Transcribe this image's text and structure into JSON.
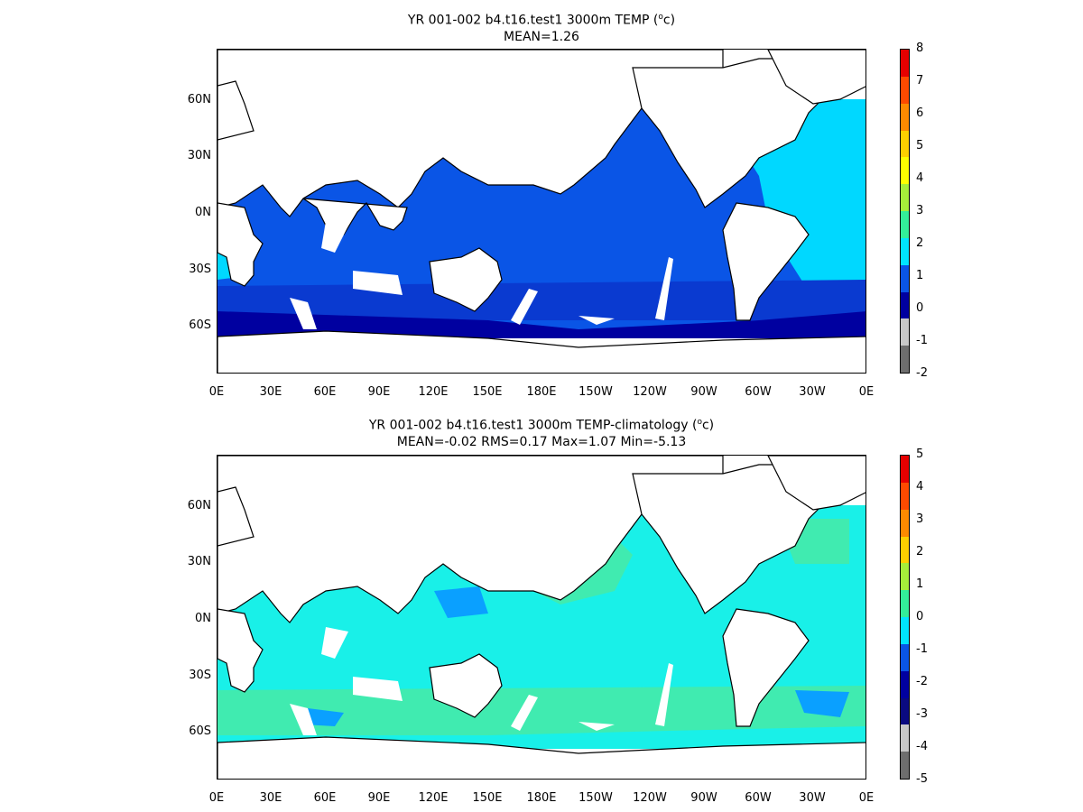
{
  "panels": [
    {
      "title_line1_pre": "YR 001-002 b4.t16.test1 3000m TEMP (",
      "title_sup": "o",
      "title_line1_post": "c)",
      "title_line2": "MEAN=1.26",
      "ocean_fill": "#0a55e6",
      "colorbar_labels": [
        "8",
        "7",
        "6",
        "5",
        "4",
        "3",
        "2",
        "1",
        "0",
        "-1",
        "-2"
      ],
      "colorbar_colors": [
        "#e60000",
        "#ff4a00",
        "#ff8a00",
        "#ffd000",
        "#ffff00",
        "#a6ee3a",
        "#33ee99",
        "#00e5ff",
        "#0a55e6",
        "#0000a0",
        "#c8c8c8",
        "#6e6e6e"
      ]
    },
    {
      "title_line1_pre": "YR 001-002 b4.t16.test1 3000m TEMP-climatology (",
      "title_sup": "o",
      "title_line1_post": "c)",
      "title_line2": "MEAN=-0.02   RMS=0.17   Max=1.07   Min=-5.13",
      "ocean_fill": "#19f0e8",
      "colorbar_labels": [
        "5",
        "4",
        "3",
        "2",
        "1",
        "0",
        "-1",
        "-2",
        "-3",
        "-4",
        "-5"
      ],
      "colorbar_colors": [
        "#e60000",
        "#ff4a00",
        "#ff8a00",
        "#ffd000",
        "#a6ee3a",
        "#33ee99",
        "#00e5ff",
        "#0a55e6",
        "#0000a0",
        "#0a0a80",
        "#c8c8c8",
        "#6e6e6e"
      ]
    }
  ],
  "x_ticks": [
    "0E",
    "30E",
    "60E",
    "90E",
    "120E",
    "150E",
    "180E",
    "150W",
    "120W",
    "90W",
    "60W",
    "30W",
    "0E"
  ],
  "y_ticks": [
    "60N",
    "30N",
    "0N",
    "30S",
    "60S"
  ],
  "colors": {
    "southern_ocean_dark": "#0000a0",
    "southern_ocean_mid": "#0a3ad0",
    "atlantic_band": "#00d8ff",
    "anomaly_green": "#40ebb0",
    "anomaly_blue": "#0aa0ff"
  }
}
